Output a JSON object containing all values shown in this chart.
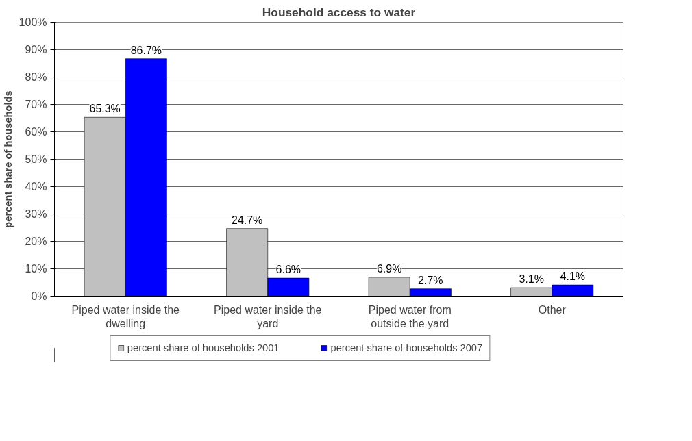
{
  "chart_data": {
    "type": "bar",
    "title": "Household access to water",
    "ylabel": "percent share of households",
    "categories": [
      "Piped water inside the dwelling",
      "Piped water inside the yard",
      "Piped water from outside the yard",
      "Other"
    ],
    "series": [
      {
        "name": "percent share of households 2001",
        "color": "#c0c0c0",
        "values": [
          65.3,
          24.7,
          6.9,
          3.1
        ],
        "value_labels": [
          "65.3%",
          "24.7%",
          "6.9%",
          "3.1%"
        ]
      },
      {
        "name": "percent share of households 2007",
        "color": "#0000ff",
        "values": [
          86.7,
          6.6,
          2.7,
          4.1
        ],
        "value_labels": [
          "86.7%",
          "6.6%",
          "2.7%",
          "4.1%"
        ]
      }
    ],
    "ylim": [
      0,
      100
    ],
    "yticks": [
      {
        "value": 0,
        "label": "0%"
      },
      {
        "value": 10,
        "label": "10%"
      },
      {
        "value": 20,
        "label": "20%"
      },
      {
        "value": 30,
        "label": "30%"
      },
      {
        "value": 40,
        "label": "40%"
      },
      {
        "value": 50,
        "label": "50%"
      },
      {
        "value": 60,
        "label": "60%"
      },
      {
        "value": 70,
        "label": "70%"
      },
      {
        "value": 80,
        "label": "80%"
      },
      {
        "value": 90,
        "label": "90%"
      },
      {
        "value": 100,
        "label": "100%"
      }
    ],
    "grid": "y",
    "legend": "bottom"
  }
}
